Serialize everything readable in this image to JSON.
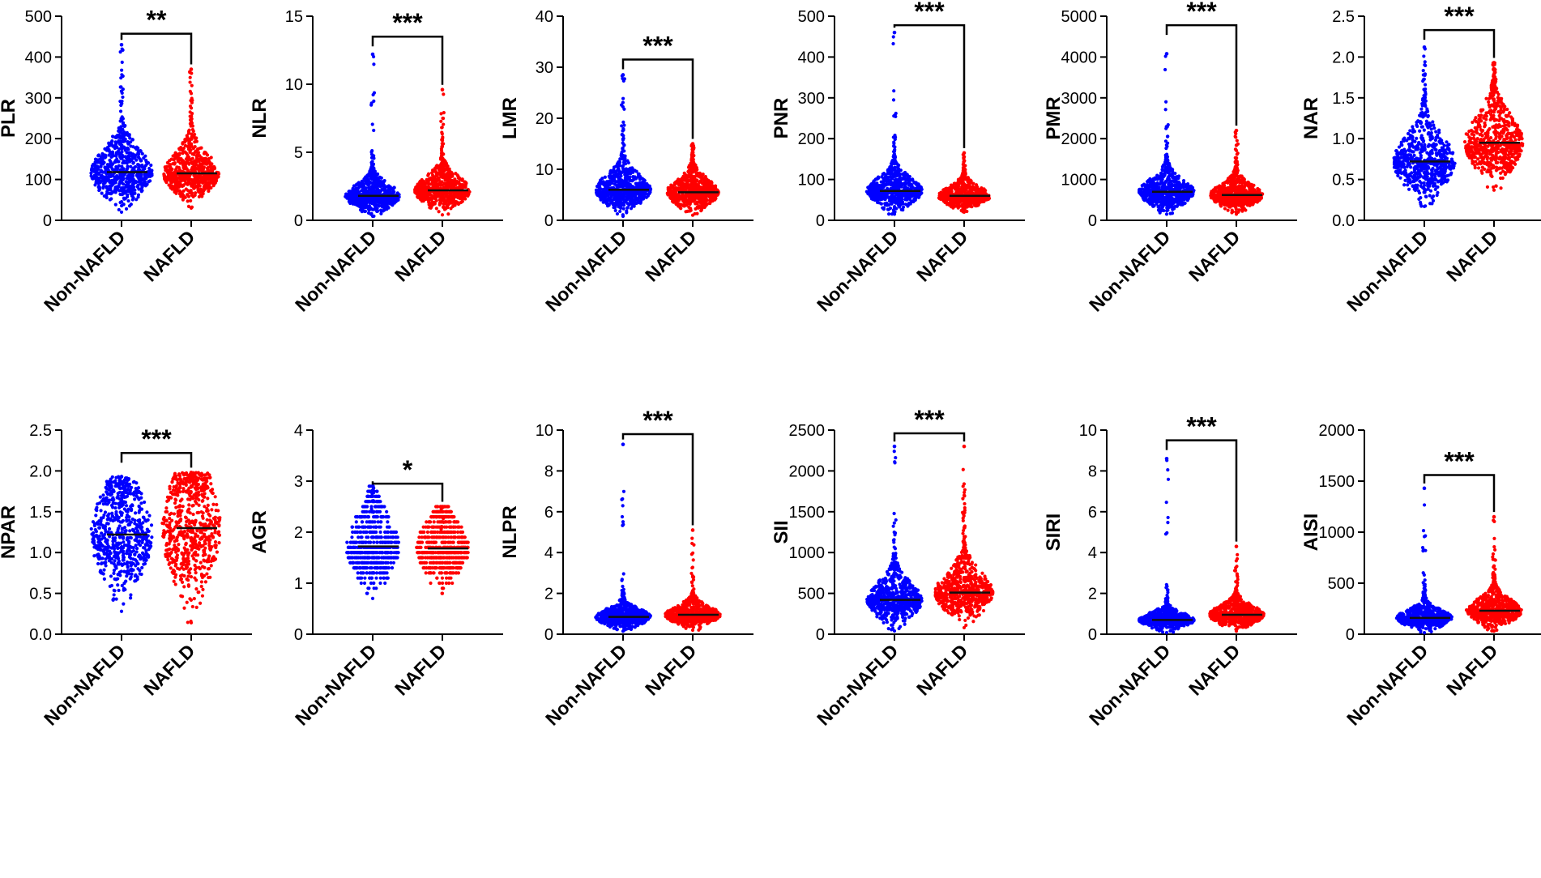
{
  "colors": {
    "non_nafld": "#0000ff",
    "nafld": "#ff0000"
  },
  "chart_data": [
    {
      "type": "scatter",
      "ylabel": "PLR",
      "ylim": [
        0,
        500
      ],
      "yticks": [
        0,
        100,
        200,
        300,
        400,
        500
      ],
      "yticklabels": [
        "0",
        "100",
        "200",
        "300",
        "400",
        "500"
      ],
      "categories": [
        "Non-NAFLD",
        "NAFLD"
      ],
      "series": [
        {
          "name": "Non-NAFLD",
          "median": 118,
          "min": 20,
          "max": 430,
          "spread": 1.0
        },
        {
          "name": "NAFLD",
          "median": 115,
          "min": 30,
          "max": 370,
          "spread": 0.9
        }
      ],
      "significance": "**",
      "bracket_y": 457
    },
    {
      "type": "scatter",
      "ylabel": "NLR",
      "ylim": [
        0,
        15
      ],
      "yticks": [
        0,
        5,
        10,
        15
      ],
      "yticklabels": [
        "0",
        "5",
        "10",
        "15"
      ],
      "categories": [
        "Non-NAFLD",
        "NAFLD"
      ],
      "series": [
        {
          "name": "Non-NAFLD",
          "median": 1.8,
          "min": 0.3,
          "max": 12.2,
          "spread": 0.9
        },
        {
          "name": "NAFLD",
          "median": 2.2,
          "min": 0.4,
          "max": 9.6,
          "spread": 0.9
        }
      ],
      "significance": "***",
      "bracket_y": 13.5
    },
    {
      "type": "scatter",
      "ylabel": "LMR",
      "ylim": [
        0,
        40
      ],
      "yticks": [
        0,
        10,
        20,
        30,
        40
      ],
      "yticklabels": [
        "0",
        "10",
        "20",
        "30",
        "40"
      ],
      "categories": [
        "Non-NAFLD",
        "NAFLD"
      ],
      "series": [
        {
          "name": "Non-NAFLD",
          "median": 6,
          "min": 0.8,
          "max": 28.5,
          "spread": 0.9
        },
        {
          "name": "NAFLD",
          "median": 5.5,
          "min": 1,
          "max": 15,
          "spread": 0.85
        }
      ],
      "significance": "***",
      "bracket_y": 31.5
    },
    {
      "type": "scatter",
      "ylabel": "PNR",
      "ylim": [
        0,
        500
      ],
      "yticks": [
        0,
        100,
        200,
        300,
        400,
        500
      ],
      "yticklabels": [
        "0",
        "100",
        "200",
        "300",
        "400",
        "500"
      ],
      "categories": [
        "Non-NAFLD",
        "NAFLD"
      ],
      "series": [
        {
          "name": "Non-NAFLD",
          "median": 72,
          "min": 15,
          "max": 460,
          "spread": 0.9
        },
        {
          "name": "NAFLD",
          "median": 60,
          "min": 20,
          "max": 165,
          "spread": 0.85
        }
      ],
      "significance": "***",
      "bracket_y": 478
    },
    {
      "type": "scatter",
      "ylabel": "PMR",
      "ylim": [
        0,
        5000
      ],
      "yticks": [
        0,
        1000,
        2000,
        3000,
        4000,
        5000
      ],
      "yticklabels": [
        "0",
        "1000",
        "2000",
        "3000",
        "4000",
        "5000"
      ],
      "categories": [
        "Non-NAFLD",
        "NAFLD"
      ],
      "series": [
        {
          "name": "Non-NAFLD",
          "median": 700,
          "min": 150,
          "max": 4080,
          "spread": 0.9
        },
        {
          "name": "NAFLD",
          "median": 620,
          "min": 150,
          "max": 2200,
          "spread": 0.85
        }
      ],
      "significance": "***",
      "bracket_y": 4780
    },
    {
      "type": "scatter",
      "ylabel": "NAR",
      "ylim": [
        0,
        2.5
      ],
      "yticks": [
        0,
        0.5,
        1.0,
        1.5,
        2.0,
        2.5
      ],
      "yticklabels": [
        "0.0",
        "0.5",
        "1.0",
        "1.5",
        "2.0",
        "2.5"
      ],
      "categories": [
        "Non-NAFLD",
        "NAFLD"
      ],
      "series": [
        {
          "name": "Non-NAFLD",
          "median": 0.72,
          "min": 0.17,
          "max": 2.12,
          "spread": 1.0
        },
        {
          "name": "NAFLD",
          "median": 0.95,
          "min": 0.37,
          "max": 1.93,
          "spread": 0.95
        }
      ],
      "significance": "***",
      "bracket_y": 2.33
    },
    {
      "type": "scatter",
      "ylabel": "NPAR",
      "ylim": [
        0,
        2.5
      ],
      "yticks": [
        0,
        0.5,
        1.0,
        1.5,
        2.0,
        2.5
      ],
      "yticklabels": [
        "0.0",
        "0.5",
        "1.0",
        "1.5",
        "2.0",
        "2.5"
      ],
      "categories": [
        "Non-NAFLD",
        "NAFLD"
      ],
      "series": [
        {
          "name": "Non-NAFLD",
          "median": 1.22,
          "min": 0.28,
          "max": 1.93,
          "spread": 1.0
        },
        {
          "name": "NAFLD",
          "median": 1.3,
          "min": 0.14,
          "max": 1.98,
          "spread": 0.95
        }
      ],
      "significance": "***",
      "bracket_y": 2.22
    },
    {
      "type": "scatter",
      "ylabel": "AGR",
      "ylim": [
        0,
        4
      ],
      "yticks": [
        0,
        1,
        2,
        3,
        4
      ],
      "yticklabels": [
        "0",
        "1",
        "2",
        "3",
        "4"
      ],
      "categories": [
        "Non-NAFLD",
        "NAFLD"
      ],
      "series": [
        {
          "name": "Non-NAFLD",
          "median": 1.72,
          "min": 0.7,
          "max": 2.9,
          "spread": 0.85,
          "striped": true
        },
        {
          "name": "NAFLD",
          "median": 1.68,
          "min": 0.8,
          "max": 2.5,
          "spread": 0.85,
          "striped": true
        }
      ],
      "significance": "*",
      "bracket_y": 2.95
    },
    {
      "type": "scatter",
      "ylabel": "NLPR",
      "ylim": [
        0,
        10
      ],
      "yticks": [
        0,
        2,
        4,
        6,
        8,
        10
      ],
      "yticklabels": [
        "0",
        "2",
        "4",
        "6",
        "8",
        "10"
      ],
      "categories": [
        "Non-NAFLD",
        "NAFLD"
      ],
      "series": [
        {
          "name": "Non-NAFLD",
          "median": 0.85,
          "min": 0.15,
          "max": 9.3,
          "spread": 0.9
        },
        {
          "name": "NAFLD",
          "median": 0.95,
          "min": 0.2,
          "max": 5.1,
          "spread": 0.9
        }
      ],
      "significance": "***",
      "bracket_y": 9.8
    },
    {
      "type": "scatter",
      "ylabel": "SII",
      "ylim": [
        0,
        2500
      ],
      "yticks": [
        0,
        500,
        1000,
        1500,
        2000,
        2500
      ],
      "yticklabels": [
        "0",
        "500",
        "1000",
        "1500",
        "2000",
        "2500"
      ],
      "categories": [
        "Non-NAFLD",
        "NAFLD"
      ],
      "series": [
        {
          "name": "Non-NAFLD",
          "median": 420,
          "min": 40,
          "max": 2300,
          "spread": 0.9
        },
        {
          "name": "NAFLD",
          "median": 510,
          "min": 80,
          "max": 2300,
          "spread": 0.95
        }
      ],
      "significance": "***",
      "bracket_y": 2460
    },
    {
      "type": "scatter",
      "ylabel": "SIRI",
      "ylim": [
        0,
        10
      ],
      "yticks": [
        0,
        2,
        4,
        6,
        8,
        10
      ],
      "yticklabels": [
        "0",
        "2",
        "4",
        "6",
        "8",
        "10"
      ],
      "categories": [
        "Non-NAFLD",
        "NAFLD"
      ],
      "series": [
        {
          "name": "Non-NAFLD",
          "median": 0.7,
          "min": 0.08,
          "max": 8.6,
          "spread": 0.9
        },
        {
          "name": "NAFLD",
          "median": 0.95,
          "min": 0.15,
          "max": 4.3,
          "spread": 0.9
        }
      ],
      "significance": "***",
      "bracket_y": 9.5
    },
    {
      "type": "scatter",
      "ylabel": "AISI",
      "ylim": [
        0,
        2000
      ],
      "yticks": [
        0,
        500,
        1000,
        1500,
        2000
      ],
      "yticklabels": [
        "0",
        "500",
        "1000",
        "1500",
        "2000"
      ],
      "categories": [
        "Non-NAFLD",
        "NAFLD"
      ],
      "series": [
        {
          "name": "Non-NAFLD",
          "median": 160,
          "min": 15,
          "max": 1430,
          "spread": 0.9
        },
        {
          "name": "NAFLD",
          "median": 230,
          "min": 30,
          "max": 1150,
          "spread": 0.9
        }
      ],
      "significance": "***",
      "bracket_y": 1560
    }
  ]
}
